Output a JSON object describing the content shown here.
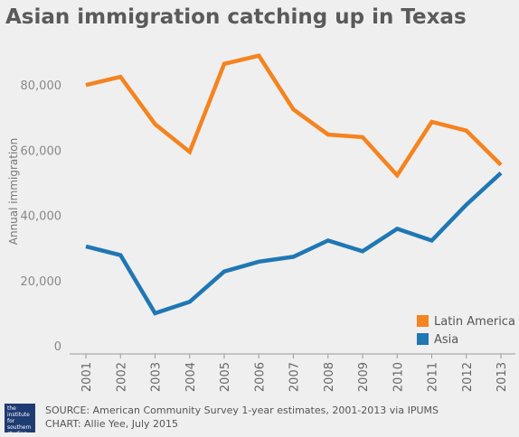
{
  "chart_data": {
    "type": "line",
    "title": "Asian immigration catching up in Texas",
    "ylabel": "Annual immigration",
    "xlabel": "",
    "x": [
      "2001",
      "2002",
      "2003",
      "2004",
      "2005",
      "2006",
      "2007",
      "2008",
      "2009",
      "2010",
      "2011",
      "2012",
      "2013"
    ],
    "ylim": [
      0,
      95000
    ],
    "yticks": [
      0,
      20000,
      40000,
      60000,
      80000
    ],
    "ytick_labels": [
      "0",
      "20,000",
      "40,000",
      "60,000",
      "80,000"
    ],
    "grid": false,
    "legend": "bottom-right",
    "series": [
      {
        "name": "Latin America",
        "color": "#f5831f",
        "values": [
          80000,
          82500,
          68000,
          59500,
          86500,
          89000,
          72500,
          64800,
          64000,
          52300,
          68700,
          66000,
          55500
        ]
      },
      {
        "name": "Asia",
        "color": "#1f77b4",
        "values": [
          30500,
          27800,
          10000,
          13500,
          22800,
          25800,
          27300,
          32300,
          29000,
          35900,
          32300,
          43300,
          53000
        ]
      }
    ]
  },
  "footer": {
    "source": "SOURCE: American Community Survey 1-year estimates, 2001-2013 via IPUMS",
    "credit": "CHART: Allie Yee, July 2015",
    "logo_lines": [
      "the",
      "institute",
      "for",
      "southern",
      "studies"
    ]
  }
}
